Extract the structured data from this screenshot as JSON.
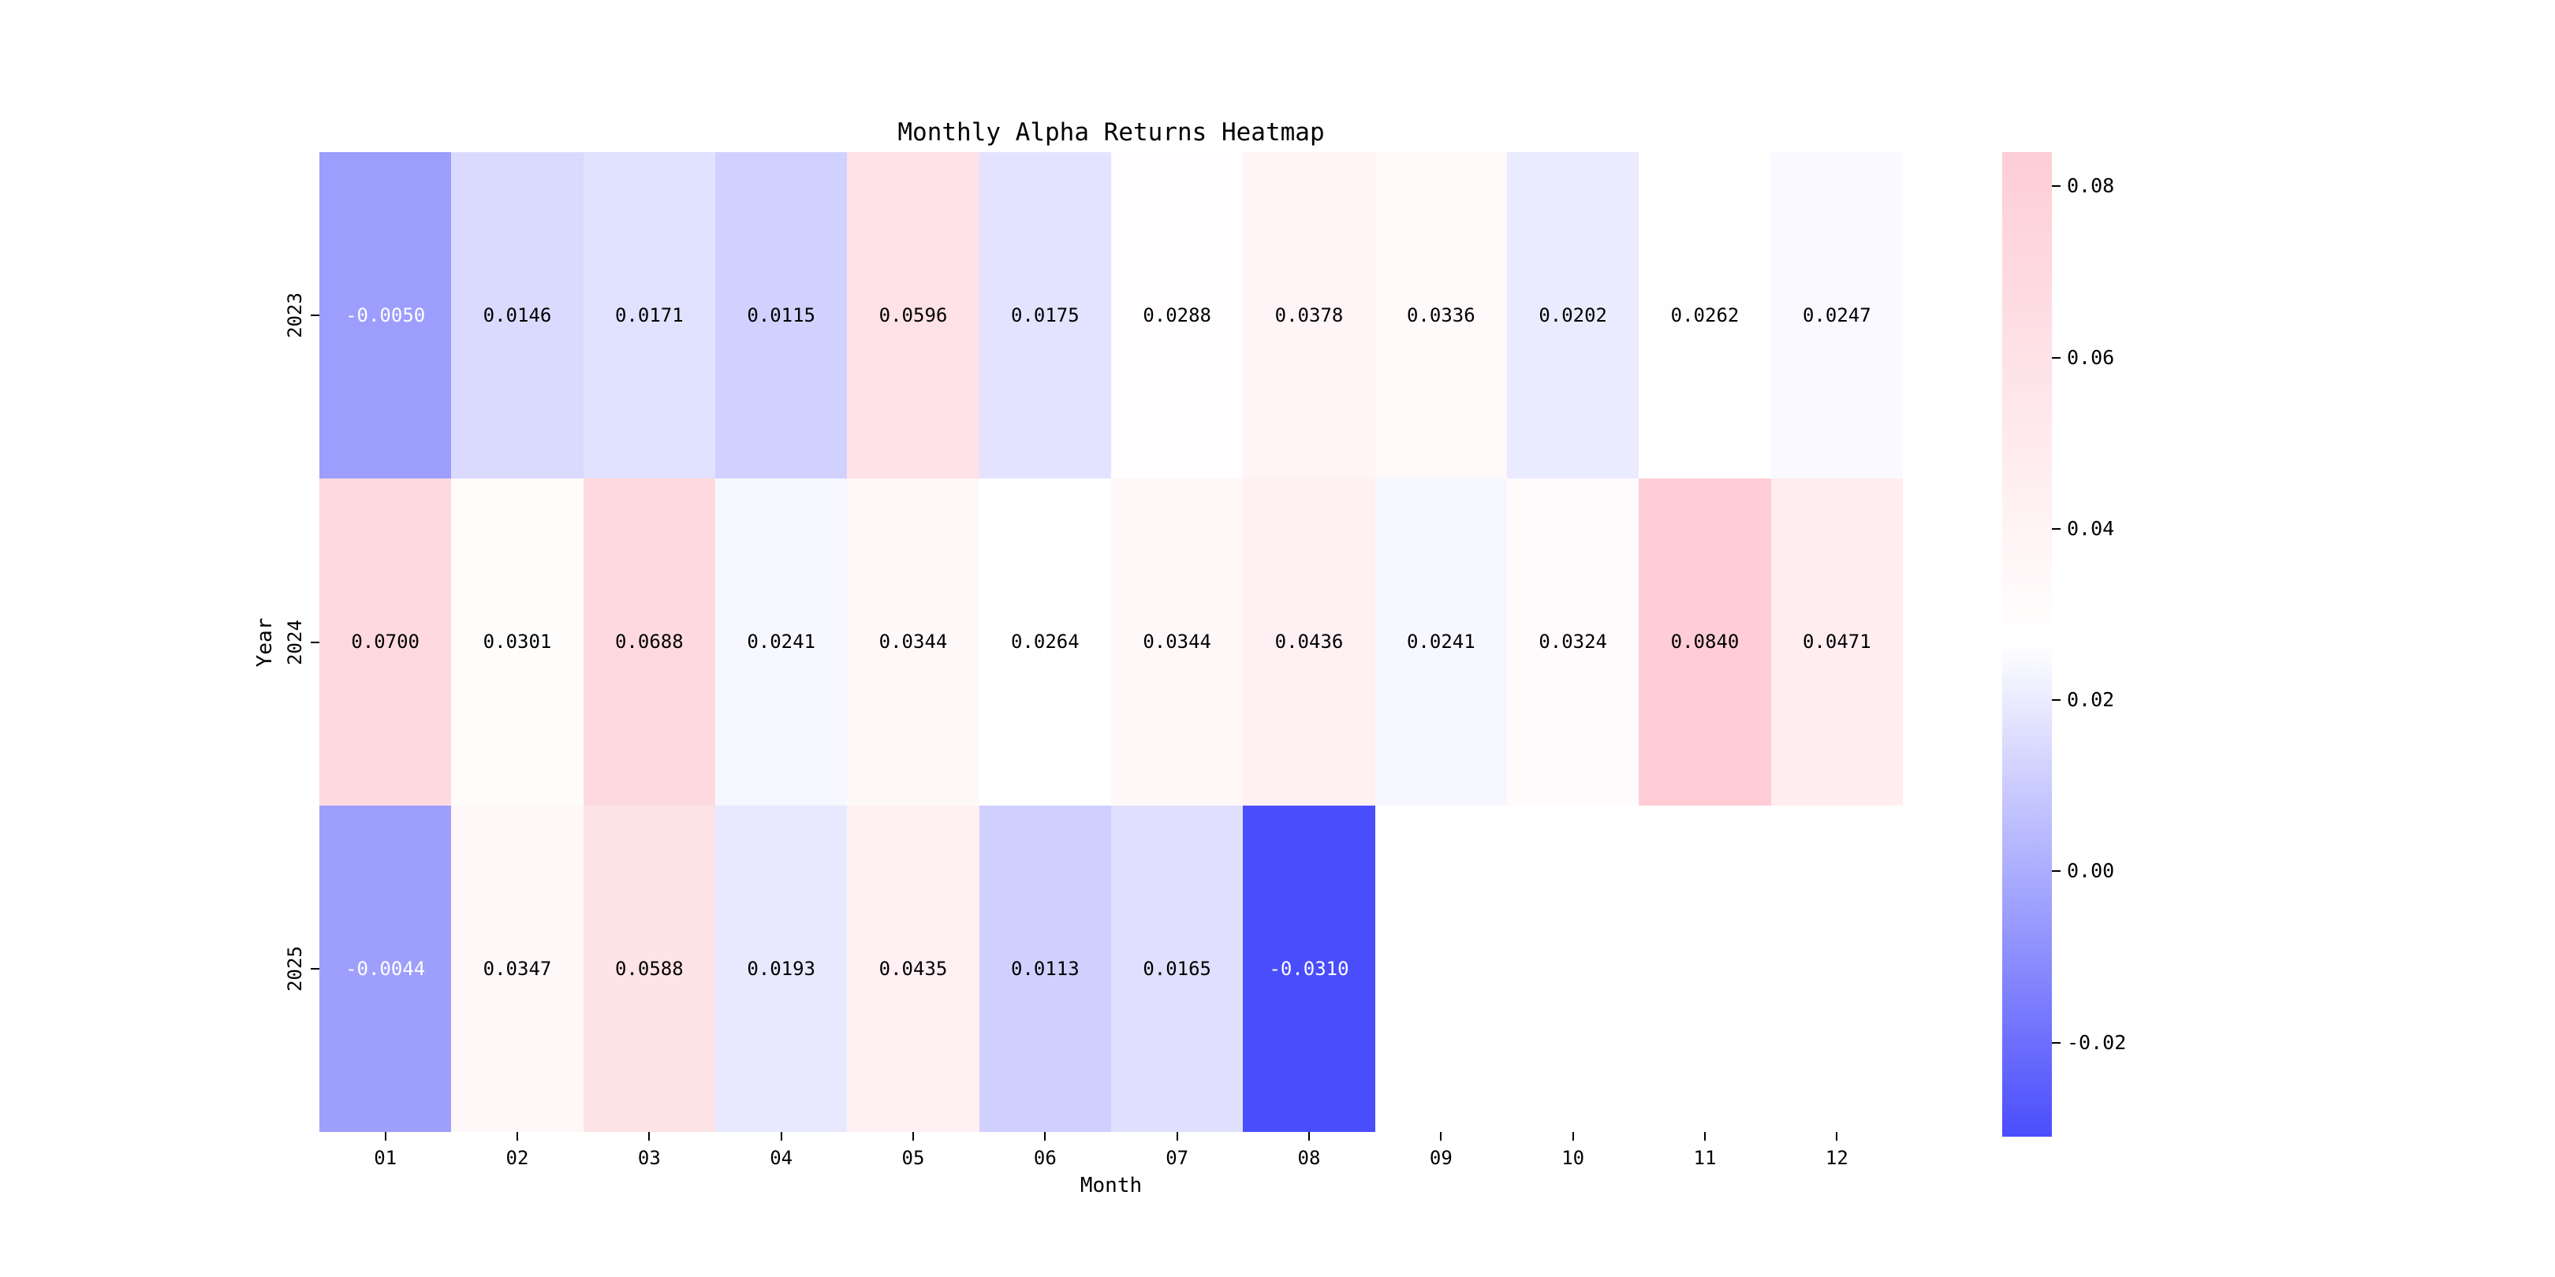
{
  "chart_data": {
    "type": "heatmap",
    "title": "Monthly Alpha Returns Heatmap",
    "xlabel": "Month",
    "ylabel": "Year",
    "x_tick_labels": [
      "01",
      "02",
      "03",
      "04",
      "05",
      "06",
      "07",
      "08",
      "09",
      "10",
      "11",
      "12"
    ],
    "y_tick_labels": [
      "2023",
      "2024",
      "2025"
    ],
    "series": [
      {
        "name": "2023",
        "values": [
          -0.005,
          0.0146,
          0.0171,
          0.0115,
          0.0596,
          0.0175,
          0.0288,
          0.0378,
          0.0336,
          0.0202,
          0.0262,
          0.0247
        ]
      },
      {
        "name": "2024",
        "values": [
          0.07,
          0.0301,
          0.0688,
          0.0241,
          0.0344,
          0.0264,
          0.0344,
          0.0436,
          0.0241,
          0.0324,
          0.084,
          0.0471
        ]
      },
      {
        "name": "2025",
        "values": [
          -0.0044,
          0.0347,
          0.0588,
          0.0193,
          0.0435,
          0.0113,
          0.0165,
          -0.031,
          null,
          null,
          null,
          null
        ]
      }
    ],
    "value_format_decimals": 4,
    "vmin": -0.031,
    "vmax": 0.084,
    "colormap": {
      "low": "#4a4dfc",
      "mid": "#ffffff",
      "high": "#fecdd5"
    },
    "colorbar_ticks": [
      0.08,
      0.06,
      0.04,
      0.02,
      0.0,
      -0.02
    ],
    "colorbar_tick_decimals": 2,
    "colorbar_position": "right",
    "grid": false,
    "background_color": "#ffffff"
  }
}
